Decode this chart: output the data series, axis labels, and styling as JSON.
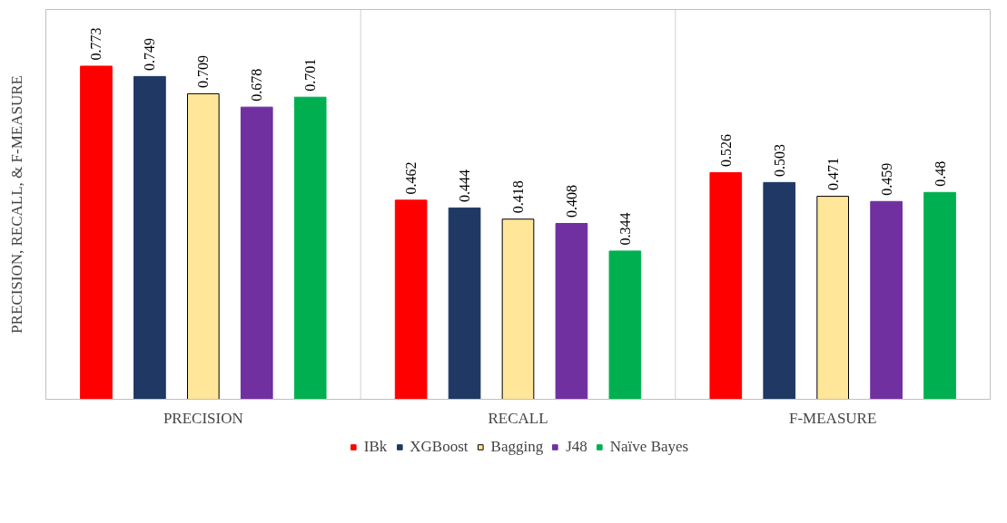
{
  "chart_data": {
    "type": "bar",
    "ylabel": "PRECISION, RECALL, & F-MEASURE",
    "categories": [
      "PRECISION",
      "RECALL",
      "F-MEASURE"
    ],
    "series": [
      {
        "name": "IBk",
        "color": "#ff0000",
        "values": [
          0.773,
          0.462,
          0.526
        ]
      },
      {
        "name": "XGBoost",
        "color": "#1f3864",
        "values": [
          0.749,
          0.444,
          0.503
        ]
      },
      {
        "name": "Bagging",
        "color": "#ffe699",
        "values": [
          0.709,
          0.418,
          0.471
        ]
      },
      {
        "name": "J48",
        "color": "#7030a0",
        "values": [
          0.678,
          0.408,
          0.459
        ]
      },
      {
        "name": "Naïve Bayes",
        "color": "#00b050",
        "values": [
          0.701,
          0.344,
          0.48
        ]
      }
    ],
    "data_labels": true,
    "legend": "bottom",
    "tick_labels": "x"
  }
}
